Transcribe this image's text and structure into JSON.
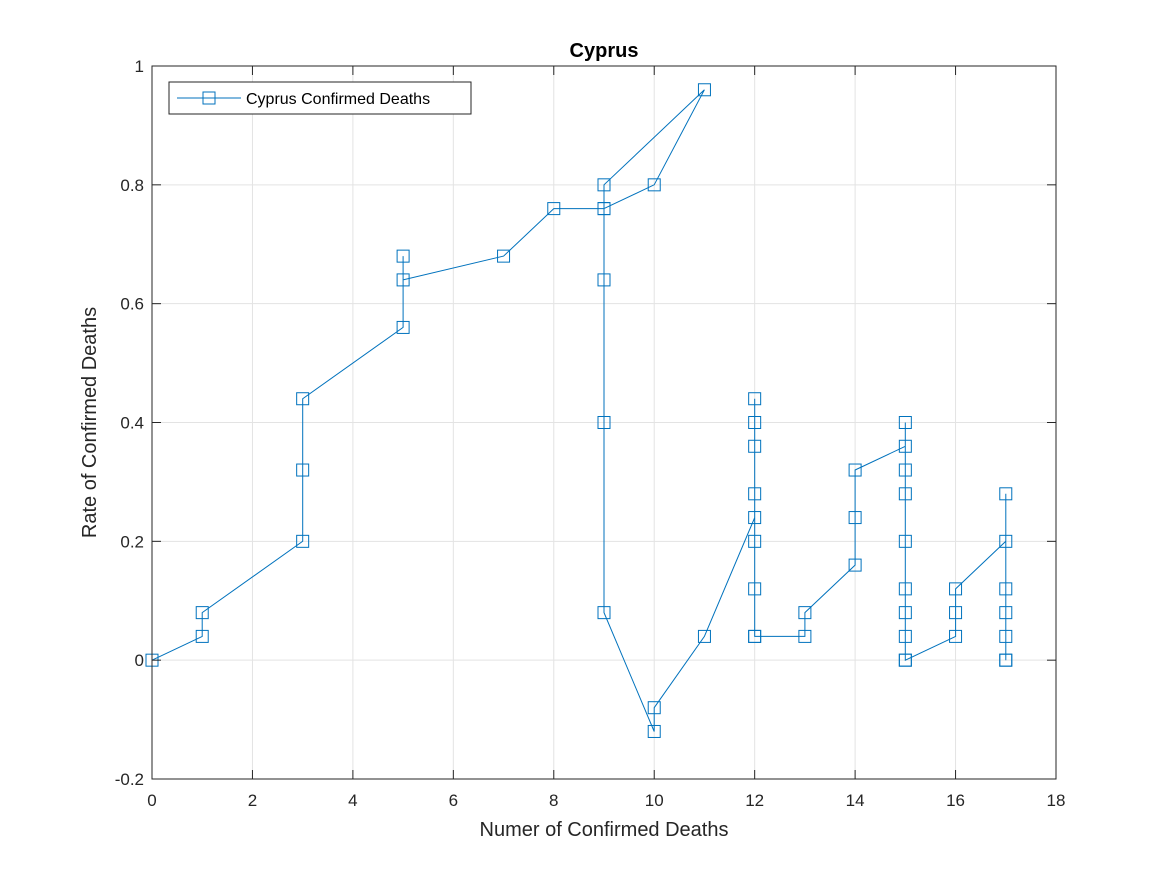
{
  "chart_data": {
    "type": "line",
    "title": "Cyprus",
    "xlabel": "Numer of Confirmed Deaths",
    "ylabel": "Rate of Confirmed Deaths",
    "xlim": [
      0,
      18
    ],
    "ylim": [
      -0.2,
      1
    ],
    "xticks": [
      0,
      2,
      4,
      6,
      8,
      10,
      12,
      14,
      16,
      18
    ],
    "yticks": [
      -0.2,
      0,
      0.2,
      0.4,
      0.6,
      0.8,
      1
    ],
    "xtick_labels": [
      "0",
      "2",
      "4",
      "6",
      "8",
      "10",
      "12",
      "14",
      "16",
      "18"
    ],
    "ytick_labels": [
      "-0.2",
      "0",
      "0.2",
      "0.4",
      "0.6",
      "0.8",
      "1"
    ],
    "grid": true,
    "legend_position": "top-left",
    "marker": "square",
    "color": "#0072BD",
    "series": [
      {
        "name": "Cyprus Confirmed Deaths",
        "x": [
          0,
          1,
          1,
          3,
          3,
          3,
          5,
          5,
          5,
          7,
          8,
          9,
          9,
          11,
          10,
          9,
          9,
          9,
          9,
          10,
          10,
          11,
          12,
          12,
          12,
          12,
          12,
          12,
          12,
          12,
          12,
          13,
          13,
          14,
          14,
          14,
          15,
          15,
          15,
          15,
          15,
          15,
          15,
          15,
          15,
          15,
          16,
          16,
          16,
          17,
          17,
          17,
          17,
          17,
          17,
          17
        ],
        "y": [
          0,
          0.04,
          0.08,
          0.2,
          0.32,
          0.44,
          0.56,
          0.68,
          0.64,
          0.68,
          0.76,
          0.76,
          0.8,
          0.96,
          0.8,
          0.76,
          0.64,
          0.4,
          0.08,
          -0.12,
          -0.08,
          0.04,
          0.24,
          0.44,
          0.4,
          0.36,
          0.28,
          0.2,
          0.12,
          0.04,
          0.04,
          0.04,
          0.08,
          0.16,
          0.24,
          0.32,
          0.36,
          0.4,
          0.32,
          0.28,
          0.2,
          0.12,
          0.08,
          0.04,
          0,
          0,
          0.04,
          0.08,
          0.12,
          0.2,
          0.28,
          0.12,
          0.08,
          0.04,
          0,
          0
        ]
      }
    ]
  }
}
